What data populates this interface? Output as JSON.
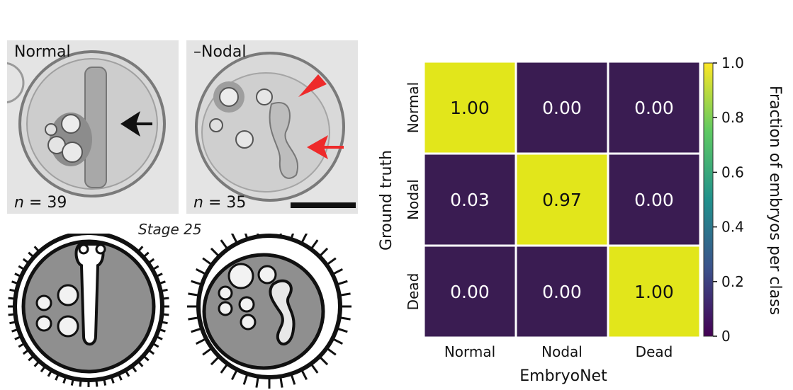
{
  "panels": {
    "normal_label": "Normal",
    "nodal_label": "–Nodal",
    "normal_n": "39",
    "nodal_n": "35",
    "n_symbol": "n",
    "eq": " = ",
    "stage_label": "Stage 25"
  },
  "colors": {
    "high": "#e2e61b",
    "low": "#3a1c52",
    "arrow_normal": "#111111",
    "arrow_nodal": "#ee2a2a"
  },
  "chart_data": {
    "type": "heatmap",
    "row_labels": [
      "Normal",
      "Nodal",
      "Dead"
    ],
    "col_labels": [
      "Normal",
      "Nodal",
      "Dead"
    ],
    "values": [
      [
        1.0,
        0.0,
        0.0
      ],
      [
        0.03,
        0.97,
        0.0
      ],
      [
        0.0,
        0.0,
        1.0
      ]
    ],
    "cell_text": [
      [
        "1.00",
        "0.00",
        "0.00"
      ],
      [
        "0.03",
        "0.97",
        "0.00"
      ],
      [
        "0.00",
        "0.00",
        "1.00"
      ]
    ],
    "xlabel": "EmbryoNet",
    "ylabel": "Ground truth",
    "colorbar": {
      "label": "Fraction of embryos per class",
      "range": [
        0,
        1
      ],
      "ticks": [
        0,
        0.2,
        0.4,
        0.6,
        0.8,
        1.0
      ],
      "tick_labels": [
        "0",
        "0.2",
        "0.4",
        "0.6",
        "0.8",
        "1.0"
      ],
      "colormap": "viridis"
    }
  }
}
